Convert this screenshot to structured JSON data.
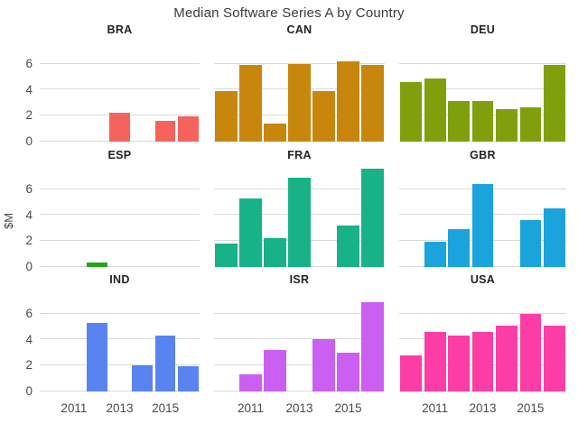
{
  "chart_data": {
    "type": "bar",
    "title": "Median Software Series A by Country",
    "xlabel": "",
    "ylabel": "$M",
    "years": [
      2010,
      2011,
      2012,
      2013,
      2014,
      2015,
      2016
    ],
    "x_tick_years": [
      2011,
      2013,
      2015
    ],
    "x_tick_labels": [
      "2011",
      "2013",
      "2015"
    ],
    "y_ticks": [
      0,
      2,
      4,
      6
    ],
    "ylim": [
      0,
      7.8
    ],
    "grid": "horizontal-only",
    "legend": "none",
    "facet_grid": "3x3",
    "facets": [
      {
        "label": "BRA",
        "color": "#F4645D",
        "values": {
          "2013": 2.2,
          "2015": 1.6,
          "2016": 1.9
        }
      },
      {
        "label": "CAN",
        "color": "#C8860D",
        "values": {
          "2010": 3.9,
          "2011": 5.9,
          "2012": 1.4,
          "2013": 6.0,
          "2014": 3.9,
          "2015": 6.2,
          "2016": 5.9
        }
      },
      {
        "label": "DEU",
        "color": "#7FA00C",
        "values": {
          "2010": 4.6,
          "2011": 4.9,
          "2012": 3.1,
          "2013": 3.1,
          "2014": 2.5,
          "2015": 2.6,
          "2016": 5.9
        }
      },
      {
        "label": "ESP",
        "color": "#21A716",
        "values": {
          "2012": 0.35
        }
      },
      {
        "label": "FRA",
        "color": "#17B288",
        "values": {
          "2010": 1.8,
          "2011": 5.3,
          "2012": 2.2,
          "2013": 6.9,
          "2015": 3.2,
          "2016": 7.6
        }
      },
      {
        "label": "GBR",
        "color": "#1BA4DB",
        "values": {
          "2011": 1.9,
          "2012": 2.9,
          "2013": 6.4,
          "2015": 3.6,
          "2016": 4.5
        }
      },
      {
        "label": "IND",
        "color": "#5983F0",
        "values": {
          "2012": 5.3,
          "2014": 2.0,
          "2015": 4.3,
          "2016": 1.9
        }
      },
      {
        "label": "ISR",
        "color": "#CB5FF2",
        "values": {
          "2011": 1.3,
          "2012": 3.2,
          "2014": 4.0,
          "2015": 3.0,
          "2016": 6.9
        }
      },
      {
        "label": "USA",
        "color": "#FC3DA5",
        "values": {
          "2010": 2.8,
          "2011": 4.6,
          "2012": 4.3,
          "2013": 4.6,
          "2014": 5.1,
          "2015": 6.0,
          "2016": 5.1
        }
      }
    ],
    "style": {
      "background": "#FFFFFF",
      "grid_color": "#DADADA",
      "tick_text_color": "#4A4A4A",
      "title_color": "#3B3B3B",
      "facet_label_color": "#222222"
    }
  }
}
